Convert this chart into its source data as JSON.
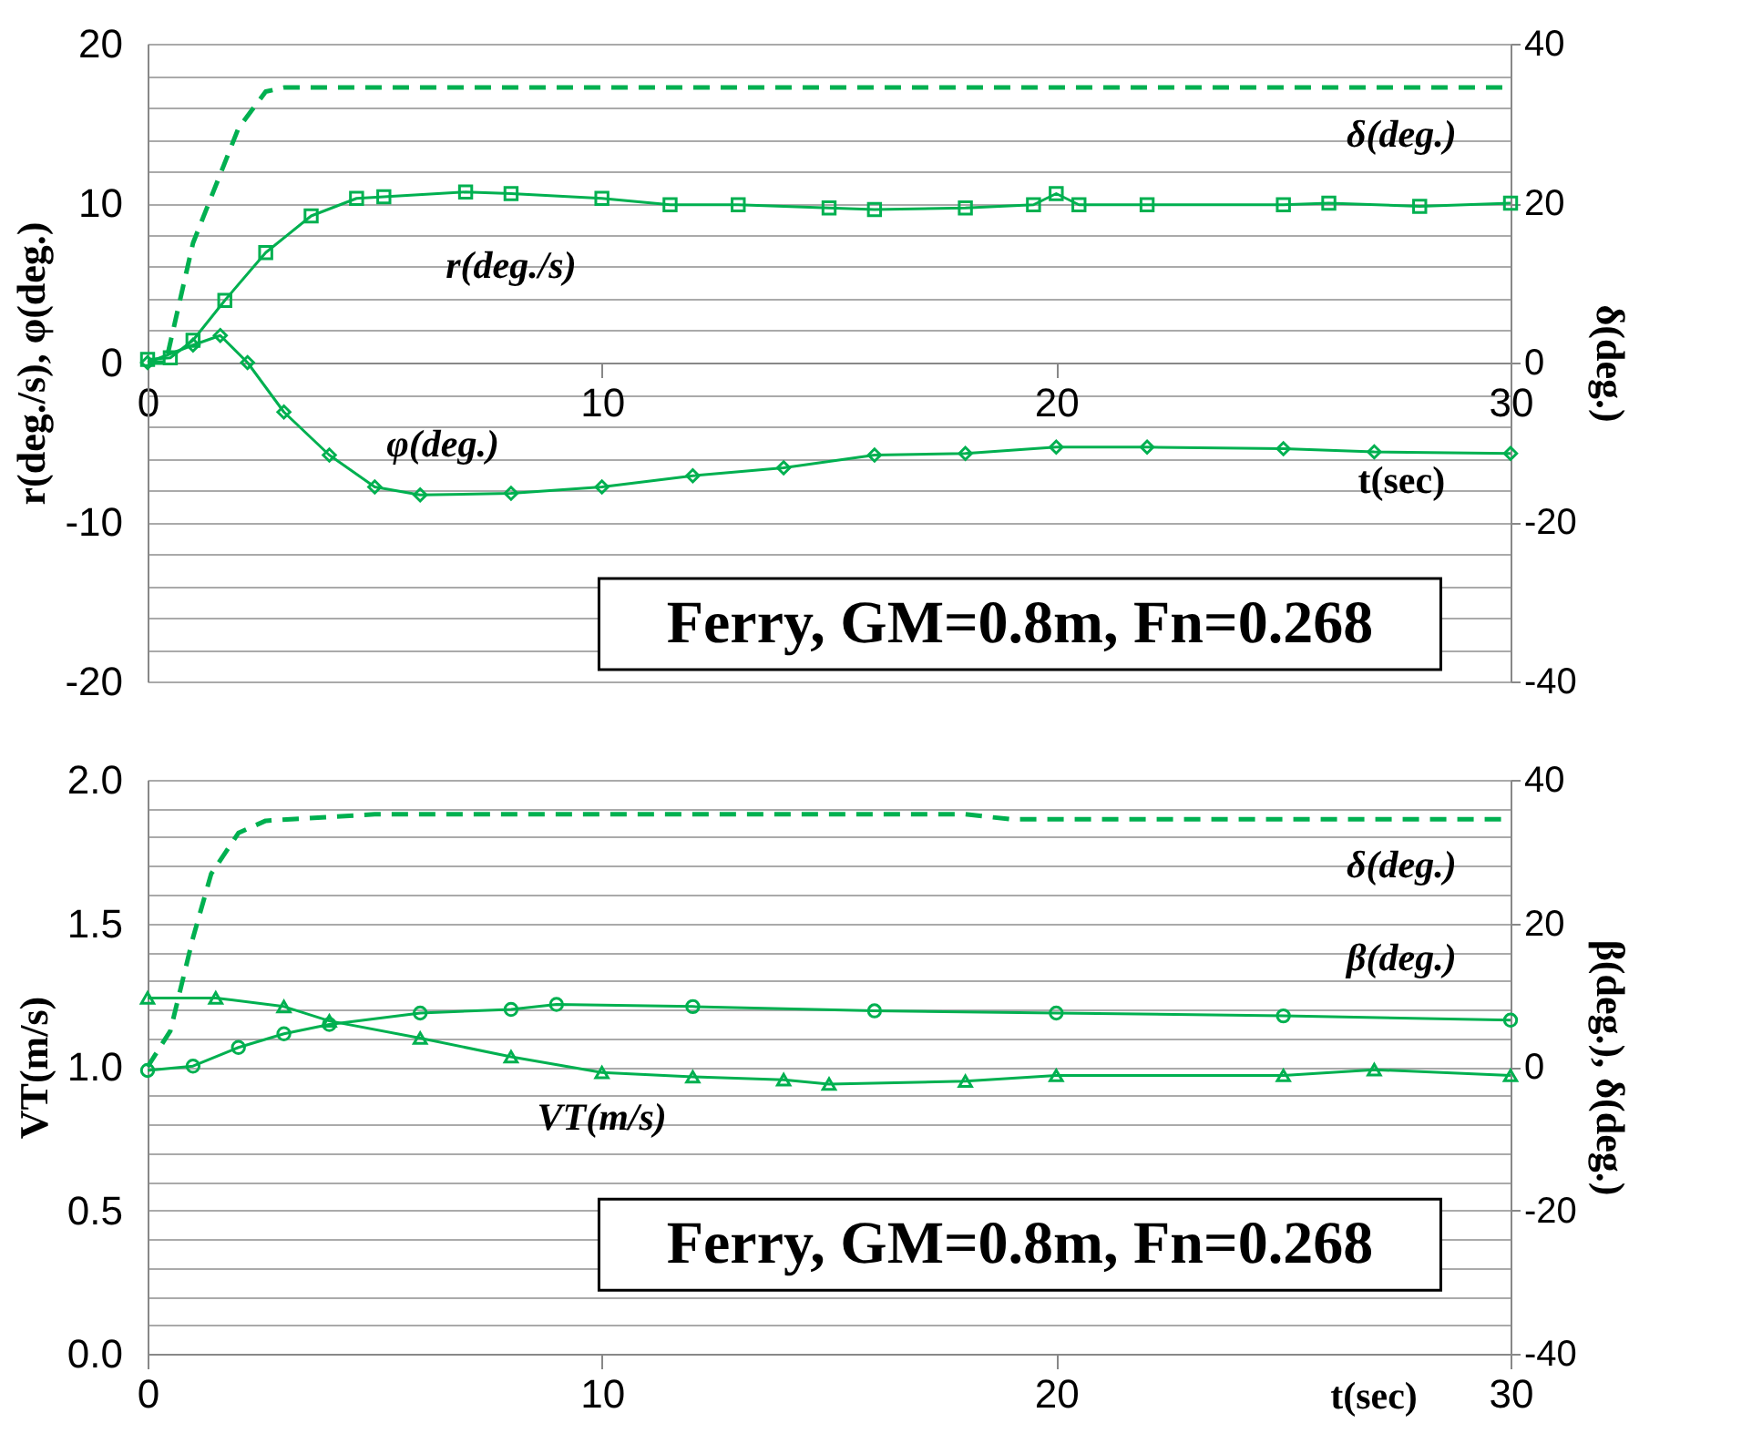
{
  "chart_data": [
    {
      "type": "line",
      "xlabel": "t(sec)",
      "ylabel": "r(deg./s), φ(deg.)",
      "y2label": "δ(deg.)",
      "xlim": [
        0,
        30
      ],
      "xticks": [
        0,
        10,
        20,
        30
      ],
      "ylim": [
        -20,
        20
      ],
      "yticks": [
        -20,
        {
          "value": -18,
          "label": null
        },
        {
          "value": -16,
          "label": null
        },
        {
          "value": -14,
          "label": null
        },
        {
          "value": -12,
          "label": null
        },
        -10,
        {
          "value": -8,
          "label": null
        },
        {
          "value": -6,
          "label": null
        },
        {
          "value": -4,
          "label": null
        },
        {
          "value": -2,
          "label": null
        },
        0,
        {
          "value": 2,
          "label": null
        },
        {
          "value": 4,
          "label": null
        },
        {
          "value": 6,
          "label": null
        },
        {
          "value": 8,
          "label": null
        },
        10,
        {
          "value": 12,
          "label": null
        },
        {
          "value": 14,
          "label": null
        },
        {
          "value": 16,
          "label": null
        },
        {
          "value": 18,
          "label": null
        },
        20
      ],
      "y2lim": [
        -40,
        40
      ],
      "y2ticks": [
        -40,
        -20,
        0,
        20,
        40
      ],
      "grid": "y",
      "annotations": [
        "Ferry, GM=0.8m, Fn=0.268"
      ],
      "series": [
        {
          "name": "δ(deg.)",
          "color": "#00b050",
          "axis": "y2",
          "marker": "none",
          "line_style": "dashed",
          "x": [
            0,
            0.4,
            1.0,
            2.0,
            2.6,
            3.0,
            30
          ],
          "values": [
            0,
            0,
            15,
            29.4,
            34,
            34.5,
            34.5
          ]
        },
        {
          "name": "r(deg./s)",
          "color": "#00b050",
          "marker": "square",
          "line_style": "solid",
          "x": [
            0,
            0.5,
            1,
            1.7,
            2.6,
            3.6,
            4.6,
            5.2,
            7,
            8,
            10,
            11.5,
            13,
            15,
            16,
            18,
            19.5,
            20,
            20.5,
            22,
            25,
            26,
            28,
            30
          ],
          "values": [
            0.2,
            0.3,
            1.4,
            3.9,
            6.9,
            9.2,
            10.3,
            10.4,
            10.7,
            10.6,
            10.3,
            9.9,
            9.9,
            9.7,
            9.6,
            9.7,
            9.9,
            10.6,
            9.9,
            9.9,
            9.9,
            10.0,
            9.8,
            10.0
          ]
        },
        {
          "name": "φ(deg.)",
          "color": "#00b050",
          "marker": "diamond",
          "line_style": "solid",
          "x": [
            0,
            1,
            1.6,
            2.2,
            3,
            4,
            5,
            6,
            8,
            10,
            12,
            14,
            16,
            18,
            20,
            22,
            25,
            27,
            30
          ],
          "values": [
            0,
            1.1,
            1.7,
            0,
            -3.1,
            -5.8,
            -7.8,
            -8.3,
            -8.2,
            -7.8,
            -7.1,
            -6.6,
            -5.8,
            -5.7,
            -5.3,
            -5.3,
            -5.4,
            -5.6,
            -5.7
          ]
        }
      ]
    },
    {
      "type": "line",
      "xlabel": "t(sec)",
      "ylabel": "VT(m/s)",
      "y2label": "β(deg.), δ(deg.)",
      "xlim": [
        0,
        30
      ],
      "xticks": [
        0,
        10,
        20,
        30
      ],
      "ylim": [
        0,
        2
      ],
      "yticks": [
        {
          "value": 0,
          "label": "0.0"
        },
        {
          "value": 0.1,
          "label": null
        },
        {
          "value": 0.2,
          "label": null
        },
        {
          "value": 0.3,
          "label": null
        },
        {
          "value": 0.4,
          "label": null
        },
        0.5,
        {
          "value": 0.6,
          "label": null
        },
        {
          "value": 0.7,
          "label": null
        },
        {
          "value": 0.8,
          "label": null
        },
        {
          "value": 0.9,
          "label": null
        },
        {
          "value": 1,
          "label": "1.0"
        },
        {
          "value": 1.1,
          "label": null
        },
        {
          "value": 1.2,
          "label": null
        },
        {
          "value": 1.3,
          "label": null
        },
        {
          "value": 1.4,
          "label": null
        },
        1.5,
        {
          "value": 1.6,
          "label": null
        },
        {
          "value": 1.7,
          "label": null
        },
        {
          "value": 1.8,
          "label": null
        },
        {
          "value": 1.9,
          "label": null
        },
        {
          "value": 2,
          "label": "2.0"
        }
      ],
      "y2lim": [
        -40,
        40
      ],
      "y2ticks": [
        -40,
        -20,
        0,
        20,
        40
      ],
      "grid": "y",
      "annotations": [
        "Ferry, GM=0.8m, Fn=0.268"
      ],
      "series": [
        {
          "name": "δ(deg.)",
          "color": "#00b050",
          "axis": "y2",
          "marker": "none",
          "line_style": "dashed",
          "x": [
            0,
            0.5,
            1.0,
            1.4,
            2.0,
            2.6,
            5,
            18,
            19,
            30
          ],
          "values": [
            0,
            5,
            18,
            26.9,
            32.6,
            34.3,
            35.2,
            35.2,
            34.5,
            34.5
          ]
        },
        {
          "name": "β(deg.)",
          "color": "#00b050",
          "axis": "y2",
          "marker": "circle",
          "line_style": "solid",
          "x": [
            0,
            1,
            2,
            3,
            4,
            6,
            8,
            9,
            12,
            16,
            20,
            25,
            30
          ],
          "values": [
            -0.5,
            0.1,
            2.7,
            4.6,
            5.9,
            7.5,
            8.0,
            8.7,
            8.4,
            7.8,
            7.5,
            7.1,
            6.5
          ]
        },
        {
          "name": "VT(m/s)",
          "color": "#00b050",
          "marker": "triangle",
          "line_style": "solid",
          "x": [
            0,
            1.5,
            3,
            4,
            6,
            8,
            10,
            12,
            14,
            15,
            18,
            20,
            25,
            27,
            30
          ],
          "values": [
            1.24,
            1.24,
            1.21,
            1.16,
            1.1,
            1.035,
            0.98,
            0.965,
            0.955,
            0.94,
            0.95,
            0.97,
            0.97,
            0.99,
            0.97
          ]
        }
      ]
    }
  ]
}
